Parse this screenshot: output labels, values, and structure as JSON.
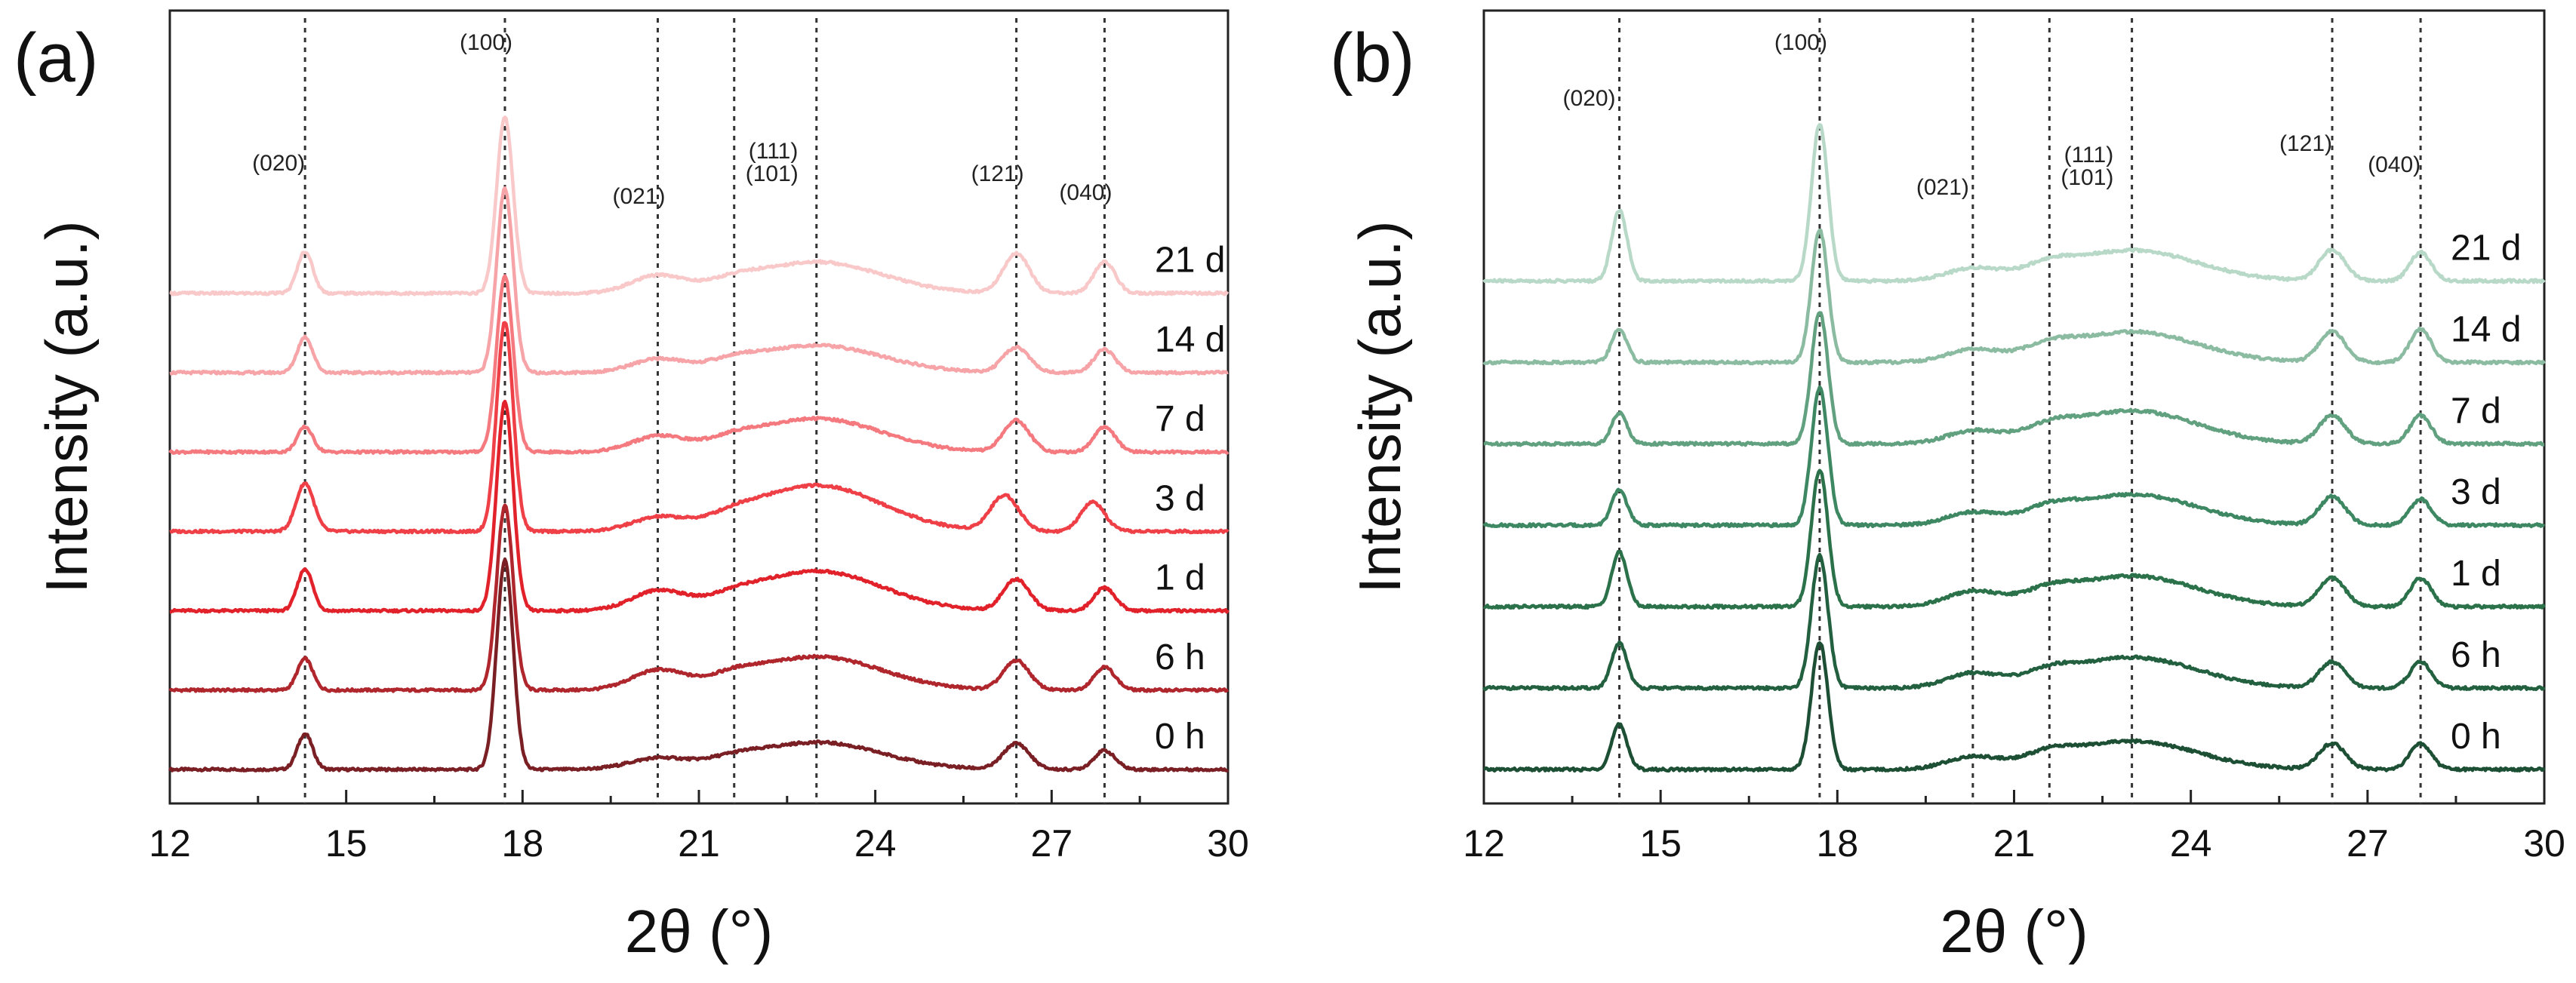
{
  "chart_data": [
    {
      "type": "line",
      "panel_label": "(a)",
      "xlabel": "2θ (°)",
      "ylabel": "Intensity (a.u.)",
      "xlim": [
        12,
        30
      ],
      "xticks": [
        12,
        15,
        18,
        21,
        24,
        27,
        30
      ],
      "yticks": "none",
      "grid": false,
      "color_family": "red",
      "peak_markers": [
        {
          "label": "(020)",
          "x": 14.3
        },
        {
          "label": "(100)",
          "x": 17.7
        },
        {
          "label": "(021)",
          "x": 20.3
        },
        {
          "label": "(101)",
          "x": 21.6
        },
        {
          "label": "(111)",
          "x": 23.0
        },
        {
          "label": "(121)",
          "x": 26.4
        },
        {
          "label": "(040)",
          "x": 27.9
        }
      ],
      "series": [
        {
          "name": "0 h",
          "color": "#7a1f24",
          "offset": 0.0,
          "peaks": [
            [
              14.3,
              0.85,
              0.13
            ],
            [
              17.7,
              5.0,
              0.14
            ],
            [
              20.3,
              0.25,
              0.5
            ],
            [
              21.6,
              0.12,
              0.4
            ],
            [
              23.0,
              0.65,
              1.1
            ],
            [
              26.4,
              0.62,
              0.22
            ],
            [
              27.9,
              0.45,
              0.18
            ]
          ]
        },
        {
          "name": "6 h",
          "color": "#b0262d",
          "offset": 1.1,
          "peaks": [
            [
              14.3,
              0.75,
              0.13
            ],
            [
              17.7,
              4.4,
              0.14
            ],
            [
              20.3,
              0.45,
              0.45
            ],
            [
              21.6,
              0.18,
              0.4
            ],
            [
              23.0,
              0.8,
              1.1
            ],
            [
              26.4,
              0.7,
              0.22
            ],
            [
              27.9,
              0.55,
              0.18
            ]
          ]
        },
        {
          "name": "1 d",
          "color": "#e2222b",
          "offset": 2.2,
          "peaks": [
            [
              14.3,
              1.0,
              0.13
            ],
            [
              17.7,
              5.0,
              0.14
            ],
            [
              20.3,
              0.45,
              0.45
            ],
            [
              21.6,
              0.15,
              0.4
            ],
            [
              23.0,
              0.95,
              1.1
            ],
            [
              26.4,
              0.75,
              0.22
            ],
            [
              27.9,
              0.55,
              0.18
            ]
          ]
        },
        {
          "name": "3 d",
          "color": "#ef4048",
          "offset": 3.3,
          "peaks": [
            [
              14.3,
              1.15,
              0.15
            ],
            [
              17.7,
              5.0,
              0.14
            ],
            [
              20.3,
              0.3,
              0.45
            ],
            [
              21.6,
              0.15,
              0.4
            ],
            [
              23.0,
              1.1,
              1.1
            ],
            [
              26.2,
              0.85,
              0.24
            ],
            [
              27.7,
              0.7,
              0.2
            ]
          ]
        },
        {
          "name": "7 d",
          "color": "#f47a7f",
          "offset": 4.4,
          "peaks": [
            [
              14.3,
              0.6,
              0.13
            ],
            [
              17.7,
              4.2,
              0.14
            ],
            [
              20.3,
              0.35,
              0.45
            ],
            [
              21.6,
              0.15,
              0.4
            ],
            [
              23.0,
              0.8,
              1.1
            ],
            [
              26.4,
              0.75,
              0.22
            ],
            [
              27.9,
              0.6,
              0.18
            ]
          ]
        },
        {
          "name": "14 d",
          "color": "#f6a4a7",
          "offset": 5.5,
          "peaks": [
            [
              14.3,
              0.85,
              0.13
            ],
            [
              17.7,
              4.4,
              0.14
            ],
            [
              20.3,
              0.3,
              0.45
            ],
            [
              21.6,
              0.15,
              0.4
            ],
            [
              23.0,
              0.65,
              1.1
            ],
            [
              26.4,
              0.6,
              0.22
            ],
            [
              27.9,
              0.55,
              0.18
            ]
          ]
        },
        {
          "name": "21 d",
          "color": "#f9c8c9",
          "offset": 6.6,
          "peaks": [
            [
              14.3,
              1.0,
              0.13
            ],
            [
              17.7,
              4.2,
              0.14
            ],
            [
              20.3,
              0.4,
              0.45
            ],
            [
              21.6,
              0.15,
              0.4
            ],
            [
              23.0,
              0.75,
              1.1
            ],
            [
              26.4,
              0.95,
              0.22
            ],
            [
              27.9,
              0.75,
              0.18
            ]
          ]
        }
      ]
    },
    {
      "type": "line",
      "panel_label": "(b)",
      "xlabel": "2θ (°)",
      "ylabel": "Intensity (a.u.)",
      "xlim": [
        12,
        30
      ],
      "xticks": [
        12,
        15,
        18,
        21,
        24,
        27,
        30
      ],
      "yticks": "none",
      "grid": false,
      "color_family": "green",
      "peak_markers": [
        {
          "label": "(020)",
          "x": 14.3
        },
        {
          "label": "(100)",
          "x": 17.7
        },
        {
          "label": "(021)",
          "x": 20.3
        },
        {
          "label": "(101)",
          "x": 21.6
        },
        {
          "label": "(111)",
          "x": 23.0
        },
        {
          "label": "(121)",
          "x": 26.4
        },
        {
          "label": "(040)",
          "x": 27.9
        }
      ],
      "series": [
        {
          "name": "0 h",
          "color": "#1d4f35",
          "offset": 0.0,
          "peaks": [
            [
              14.3,
              0.95,
              0.13
            ],
            [
              17.7,
              2.7,
              0.14
            ],
            [
              20.3,
              0.25,
              0.45
            ],
            [
              21.6,
              0.2,
              0.4
            ],
            [
              23.0,
              0.6,
              1.1
            ],
            [
              26.4,
              0.55,
              0.22
            ],
            [
              27.9,
              0.55,
              0.18
            ]
          ]
        },
        {
          "name": "6 h",
          "color": "#22603f",
          "offset": 1.0,
          "peaks": [
            [
              14.3,
              0.95,
              0.13
            ],
            [
              17.7,
              2.8,
              0.14
            ],
            [
              20.3,
              0.3,
              0.45
            ],
            [
              21.6,
              0.2,
              0.4
            ],
            [
              23.0,
              0.65,
              1.1
            ],
            [
              26.4,
              0.55,
              0.22
            ],
            [
              27.9,
              0.55,
              0.18
            ]
          ]
        },
        {
          "name": "1 d",
          "color": "#2b7149",
          "offset": 2.0,
          "peaks": [
            [
              14.3,
              1.15,
              0.13
            ],
            [
              17.7,
              2.9,
              0.14
            ],
            [
              20.3,
              0.3,
              0.45
            ],
            [
              21.6,
              0.2,
              0.4
            ],
            [
              23.0,
              0.65,
              1.1
            ],
            [
              26.4,
              0.6,
              0.22
            ],
            [
              27.9,
              0.6,
              0.18
            ]
          ]
        },
        {
          "name": "3 d",
          "color": "#3d8862",
          "offset": 3.0,
          "peaks": [
            [
              14.3,
              0.75,
              0.13
            ],
            [
              17.7,
              2.9,
              0.14
            ],
            [
              20.3,
              0.25,
              0.45
            ],
            [
              21.6,
              0.2,
              0.4
            ],
            [
              23.0,
              0.65,
              1.1
            ],
            [
              26.4,
              0.6,
              0.22
            ],
            [
              27.9,
              0.55,
              0.18
            ]
          ]
        },
        {
          "name": "7 d",
          "color": "#61a180",
          "offset": 4.0,
          "peaks": [
            [
              14.3,
              0.65,
              0.13
            ],
            [
              17.7,
              2.8,
              0.14
            ],
            [
              20.3,
              0.25,
              0.45
            ],
            [
              21.6,
              0.2,
              0.4
            ],
            [
              23.0,
              0.7,
              1.1
            ],
            [
              26.4,
              0.6,
              0.22
            ],
            [
              27.9,
              0.6,
              0.18
            ]
          ]
        },
        {
          "name": "14 d",
          "color": "#8bbca2",
          "offset": 5.0,
          "peaks": [
            [
              14.3,
              0.7,
              0.13
            ],
            [
              17.7,
              2.8,
              0.14
            ],
            [
              20.3,
              0.25,
              0.45
            ],
            [
              21.6,
              0.2,
              0.4
            ],
            [
              23.0,
              0.65,
              1.1
            ],
            [
              26.4,
              0.65,
              0.22
            ],
            [
              27.9,
              0.7,
              0.18
            ]
          ]
        },
        {
          "name": "21 d",
          "color": "#b8d9c7",
          "offset": 6.0,
          "peaks": [
            [
              14.3,
              1.5,
              0.13
            ],
            [
              17.7,
              3.3,
              0.14
            ],
            [
              20.3,
              0.25,
              0.45
            ],
            [
              21.6,
              0.2,
              0.4
            ],
            [
              23.0,
              0.65,
              1.1
            ],
            [
              26.4,
              0.65,
              0.22
            ],
            [
              27.9,
              0.6,
              0.18
            ]
          ]
        }
      ]
    }
  ]
}
